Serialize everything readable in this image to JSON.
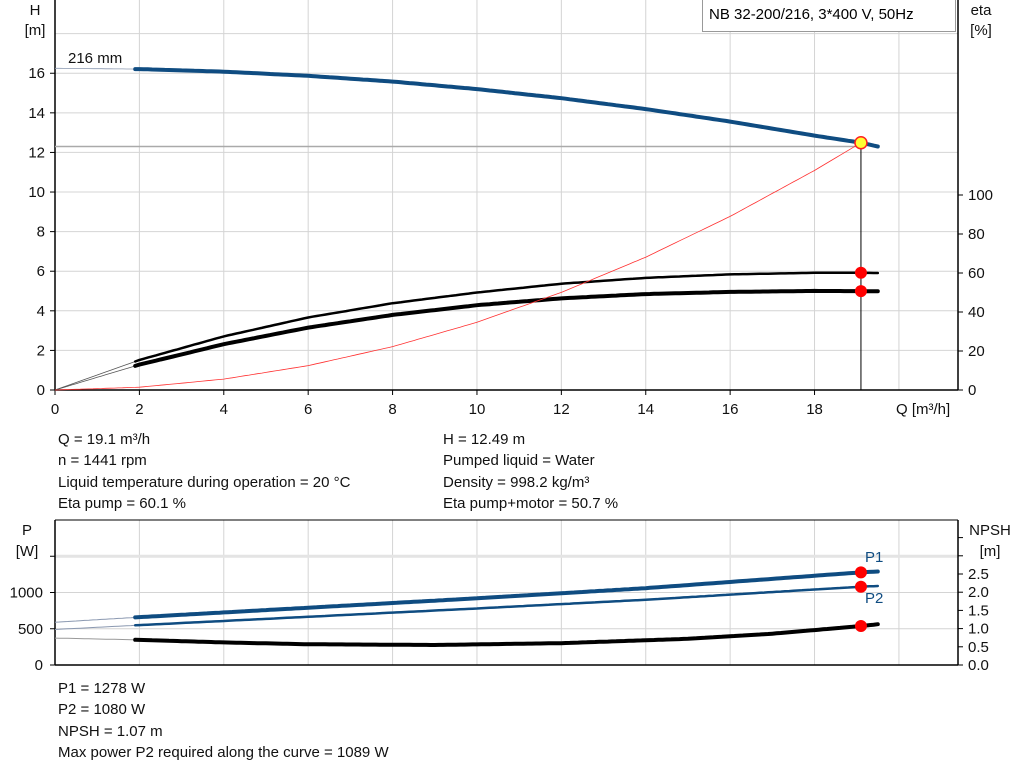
{
  "chart_data": [
    {
      "type": "line",
      "title": "NB 32-200/216, 3*400 V, 50Hz",
      "xlabel": "Q [m³/h]",
      "ylabel_left": [
        "H",
        "[m]"
      ],
      "ylabel_right": [
        "eta",
        "[%]"
      ],
      "xlim": [
        0,
        21.4
      ],
      "ylim_left": [
        0,
        19.7
      ],
      "ylim_right": [
        0,
        101
      ],
      "xticks": [
        0,
        2,
        4,
        6,
        8,
        10,
        12,
        14,
        16,
        18
      ],
      "yticks_left": [
        0,
        2,
        4,
        6,
        8,
        10,
        12,
        14,
        16
      ],
      "yticks_right": [
        0,
        20,
        40,
        60,
        80,
        100
      ],
      "grid": true,
      "curve_label": "216 mm",
      "series": [
        {
          "key": "H",
          "axis": "left",
          "color": "#0f4c81",
          "x": [
            0,
            2,
            4,
            6,
            8,
            10,
            12,
            14,
            16,
            18,
            19.1,
            19.5
          ],
          "y": [
            16.25,
            16.21,
            16.08,
            15.87,
            15.58,
            15.2,
            14.74,
            14.19,
            13.56,
            12.85,
            12.49,
            12.3
          ]
        },
        {
          "key": "eta_pump",
          "axis": "right",
          "color": "#000000",
          "x": [
            0,
            2,
            4,
            6,
            8,
            10,
            12,
            14,
            16,
            18,
            19.1,
            19.5
          ],
          "y": [
            0,
            15.4,
            27.5,
            37.2,
            44.5,
            50,
            54.5,
            57.5,
            59.3,
            60.1,
            60.1,
            60
          ]
        },
        {
          "key": "eta_pump_motor",
          "axis": "right",
          "color": "#000000",
          "x": [
            0,
            2,
            4,
            6,
            8,
            10,
            12,
            14,
            16,
            18,
            19.1,
            19.5
          ],
          "y": [
            0,
            13,
            23.5,
            32,
            38.5,
            43.5,
            47,
            49.2,
            50.3,
            50.8,
            50.7,
            50.6
          ]
        },
        {
          "key": "system_curve",
          "axis": "left",
          "color": "#ff3030",
          "x": [
            0,
            2,
            4,
            6,
            8,
            10,
            12,
            14,
            16,
            18,
            19.1
          ],
          "y": [
            0,
            0.14,
            0.55,
            1.23,
            2.19,
            3.42,
            4.93,
            6.71,
            8.77,
            11.09,
            12.49
          ]
        }
      ],
      "operating_point": {
        "Q": 19.1,
        "H": 12.49,
        "eta_pump": 60.1,
        "eta_pump_motor": 50.7
      }
    },
    {
      "type": "line",
      "xlim": [
        0,
        21.4
      ],
      "ylabel_left": [
        "P",
        "[W]"
      ],
      "ylabel_right": [
        "NPSH",
        "[m]"
      ],
      "ylim_left": [
        0,
        2000
      ],
      "ylim_right": [
        0,
        3.98
      ],
      "yticks_left": [
        0,
        500,
        1000,
        1500
      ],
      "yticks_left_labels": [
        "0",
        "500",
        "1000",
        ""
      ],
      "yticks_right": [
        0,
        0.5,
        1,
        1.5,
        2,
        2.5,
        3,
        3.5
      ],
      "yticks_right_labels": [
        "0.0",
        "0.5",
        "1.0",
        "1.5",
        "2.0",
        "2.5",
        "",
        ""
      ],
      "grid": true,
      "series": [
        {
          "name": "P1",
          "axis": "left",
          "color": "#0f4c81",
          "x": [
            0,
            2,
            6,
            10,
            14,
            19.1,
            19.5
          ],
          "y": [
            590,
            660,
            790,
            920,
            1060,
            1278,
            1290
          ]
        },
        {
          "name": "P2",
          "axis": "left",
          "color": "#0f4c81",
          "x": [
            0,
            2,
            6,
            10,
            14,
            19.1,
            19.5
          ],
          "y": [
            490,
            550,
            665,
            780,
            900,
            1080,
            1090
          ]
        },
        {
          "key": "NPSH",
          "axis": "right",
          "color": "#000000",
          "x": [
            0,
            2,
            4,
            6,
            9,
            12,
            15,
            17,
            19.1,
            19.5
          ],
          "y": [
            0.74,
            0.69,
            0.62,
            0.57,
            0.55,
            0.6,
            0.72,
            0.86,
            1.07,
            1.12
          ]
        }
      ],
      "operating_point": {
        "Q": 19.1,
        "P1": 1278,
        "P2": 1080,
        "NPSH": 1.07
      }
    }
  ],
  "info_top_left": [
    "Q = 19.1 m³/h",
    "n = 1441 rpm",
    "Liquid temperature during operation = 20 °C",
    "Eta pump = 60.1 %"
  ],
  "info_top_right": [
    "H = 12.49 m",
    "Pumped liquid = Water",
    "Density = 998.2 kg/m³",
    "Eta pump+motor = 50.7 %"
  ],
  "info_bottom": [
    "P1 = 1278 W",
    "P2 = 1080 W",
    "NPSH = 1.07 m",
    "Max power P2 required along the curve = 1089 W"
  ]
}
